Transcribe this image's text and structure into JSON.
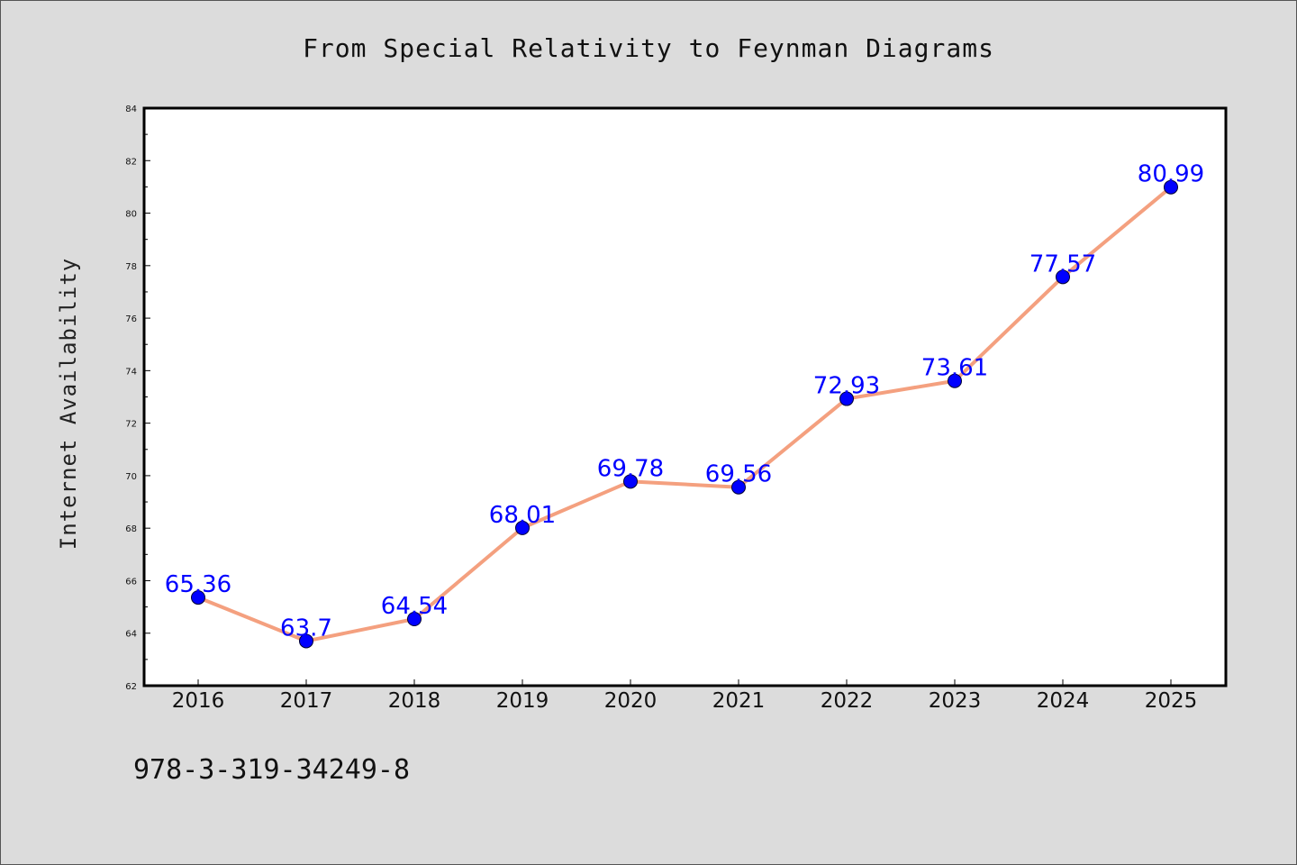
{
  "chart_data": {
    "type": "line",
    "title": "From Special Relativity to Feynman Diagrams",
    "xlabel": "",
    "ylabel": "Internet Availability",
    "categories": [
      "2016",
      "2017",
      "2018",
      "2019",
      "2020",
      "2021",
      "2022",
      "2023",
      "2024",
      "2025"
    ],
    "series": [
      {
        "values": [
          65.36,
          63.7,
          64.54,
          68.01,
          69.78,
          69.56,
          72.93,
          73.61,
          77.57,
          80.99
        ]
      }
    ],
    "data_labels": [
      "65.36",
      "63.7",
      "64.54",
      "68.01",
      "69.78",
      "69.56",
      "72.93",
      "73.61",
      "77.57",
      "80.99"
    ],
    "ylim": [
      62,
      84
    ],
    "yticks": [
      62,
      64,
      66,
      68,
      70,
      72,
      74,
      76,
      78,
      80,
      82,
      84
    ],
    "grid": false,
    "line_color": "#f4a07f",
    "marker_color": "#0000ff",
    "label_color": "#0000ff",
    "plot_background": "#ffffff",
    "figure_background": "#dcdcdc"
  },
  "footer": {
    "isbn": "978-3-319-34249-8"
  }
}
